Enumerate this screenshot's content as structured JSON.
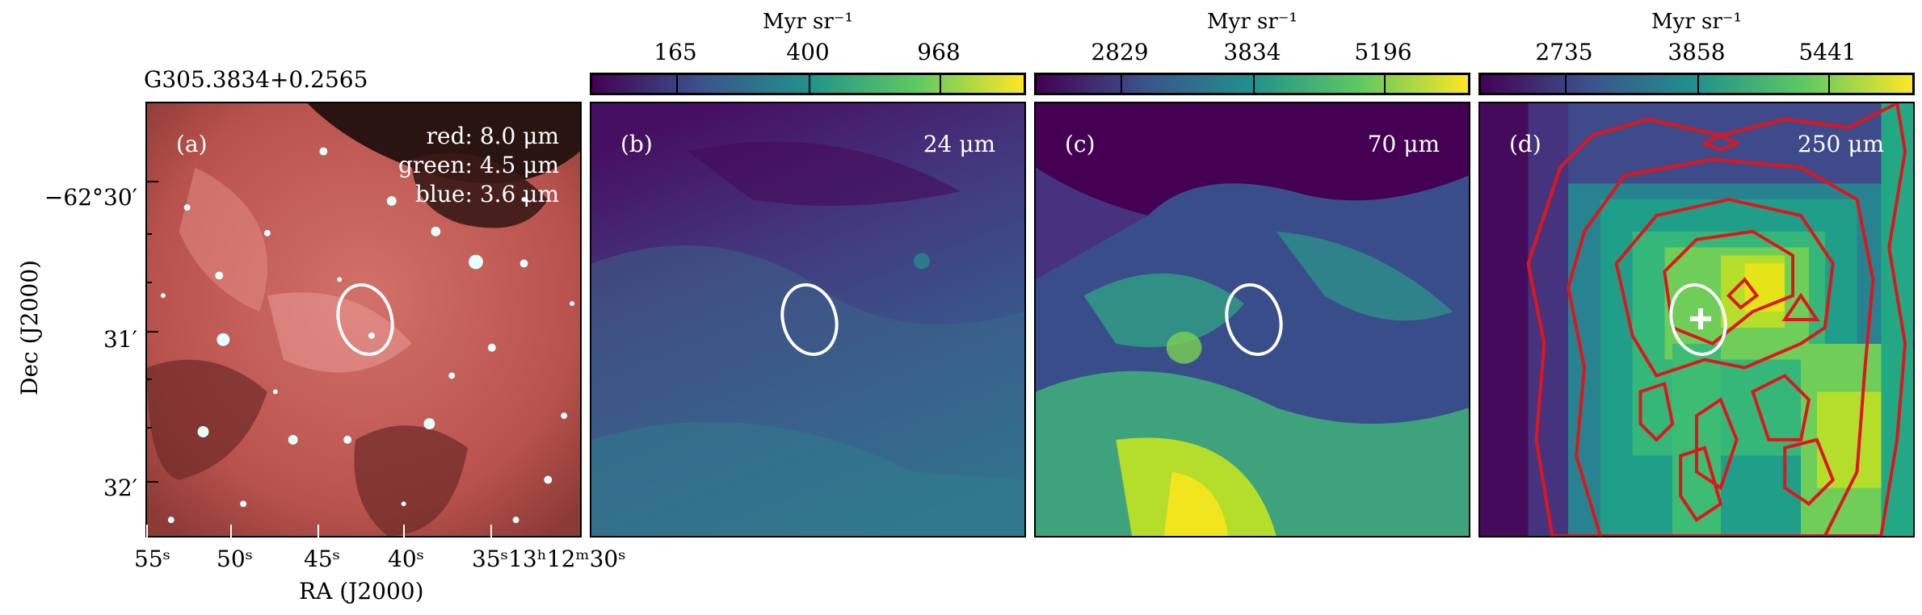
{
  "source_name": "G305.3834+0.2565",
  "axes": {
    "y_title": "Dec (J2000)",
    "x_title": "RA (J2000)",
    "y_ticks": [
      "−62°30′",
      "31′",
      "32′"
    ],
    "x_ticks": [
      "55ˢ",
      "50ˢ",
      "45ˢ",
      "40ˢ",
      "35ˢ13ʰ12ᵐ30ˢ"
    ]
  },
  "panels": [
    {
      "id": "a",
      "label": "(a)",
      "rgb_red": "red: 8.0 μm",
      "rgb_green": "green: 4.5 μm",
      "rgb_blue": "blue: 3.6 μm"
    },
    {
      "id": "b",
      "label": "(b)",
      "band": "24 μm"
    },
    {
      "id": "c",
      "label": "(c)",
      "band": "70 μm"
    },
    {
      "id": "d",
      "label": "(d)",
      "band": "250 μm"
    }
  ],
  "colorbars": [
    {
      "unit": "Myr sr⁻¹",
      "ticks": [
        "165",
        "400",
        "968"
      ]
    },
    {
      "unit": "Myr sr⁻¹",
      "ticks": [
        "2829",
        "3834",
        "5196"
      ]
    },
    {
      "unit": "Myr sr⁻¹",
      "ticks": [
        "2735",
        "3858",
        "5441"
      ]
    }
  ],
  "colors": {
    "contour": "#e0151b",
    "ellipse": "#ffffff",
    "cmap_low": "#440154",
    "cmap_high": "#fde725"
  }
}
